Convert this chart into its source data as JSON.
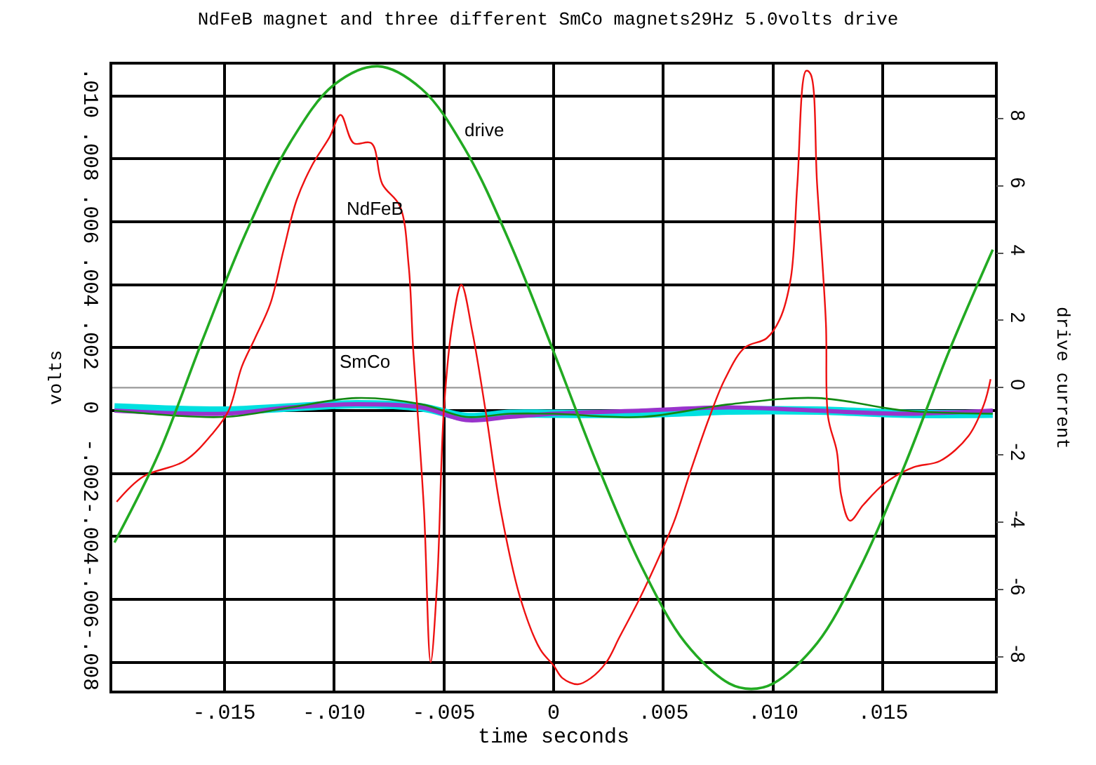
{
  "chart_data": {
    "type": "line",
    "title": "NdFeB magnet and three different SmCo magnets29Hz 5.0volts drive",
    "xlabel": "time seconds",
    "ylabel": "volts",
    "y2label": "drive current",
    "xlim": [
      -0.0201,
      0.0201
    ],
    "xticks": [
      {
        "value": -0.015,
        "label": "-.015"
      },
      {
        "value": -0.01,
        "label": "-.010"
      },
      {
        "value": -0.005,
        "label": "-.005"
      },
      {
        "value": 0,
        "label": "0"
      },
      {
        "value": 0.005,
        "label": ".005"
      },
      {
        "value": 0.01,
        "label": ".010"
      },
      {
        "value": 0.015,
        "label": ".015"
      }
    ],
    "ylim": [
      -0.0089,
      0.011
    ],
    "yticks": [
      {
        "value": -0.008,
        "label": "-.008"
      },
      {
        "value": -0.006,
        "label": "-.006"
      },
      {
        "value": -0.004,
        "label": "-.004"
      },
      {
        "value": -0.002,
        "label": "-.002"
      },
      {
        "value": 0,
        "label": "0"
      },
      {
        "value": 0.002,
        "label": ".002"
      },
      {
        "value": 0.004,
        "label": ".004"
      },
      {
        "value": 0.006,
        "label": ".006"
      },
      {
        "value": 0.008,
        "label": ".008"
      },
      {
        "value": 0.01,
        "label": ".010"
      }
    ],
    "y2lim": [
      -9.0,
      9.6
    ],
    "y2ticks": [
      -8,
      -6,
      -4,
      -2,
      0,
      2,
      4,
      6,
      8
    ],
    "grid": true,
    "marker": "none",
    "line_style": "solid",
    "ref_lines": [
      {
        "axis": "y2",
        "value": 0,
        "color": "#999999"
      }
    ],
    "annotations": [
      "drive",
      "NdFeB",
      "SmCo"
    ],
    "series": [
      {
        "color": "#00e0e0",
        "x": [
          -0.02,
          -0.015,
          -0.012,
          -0.009,
          -0.006,
          -0.004,
          -0.002,
          0,
          0.004,
          0.008,
          0.012,
          0.016,
          0.02
        ],
        "values": [
          0.0001,
          0,
          0.0001,
          0.0002,
          0.0001,
          -0.0002,
          -0.0001,
          -0.0001,
          -0.0001,
          0,
          0,
          -0.0001,
          -0.0001
        ]
      },
      {
        "color": "#9933cc",
        "x": [
          -0.02,
          -0.015,
          -0.012,
          -0.009,
          -0.006,
          -0.004,
          -0.002,
          0,
          0.004,
          0.008,
          0.012,
          0.016,
          0.02
        ],
        "values": [
          0,
          -0.0001,
          0.0001,
          0.0002,
          0.0001,
          -0.0003,
          -0.0002,
          -0.0001,
          0,
          0.0001,
          0,
          -0.0001,
          0
        ]
      },
      {
        "color": "#118811",
        "x": [
          -0.02,
          -0.015,
          -0.012,
          -0.009,
          -0.006,
          -0.004,
          -0.002,
          0,
          0.004,
          0.008,
          0.012,
          0.016,
          0.02
        ],
        "values": [
          0,
          -0.0002,
          0.0001,
          0.0004,
          0.0002,
          -0.0002,
          -0.0001,
          -0.0001,
          -0.0002,
          0.0002,
          0.0004,
          0,
          -0.0001
        ]
      },
      {
        "color": "#ee1111",
        "x": [
          -0.0199,
          -0.0187,
          -0.0168,
          -0.0155,
          -0.0148,
          -0.0142,
          -0.0136,
          -0.0129,
          -0.0123,
          -0.0117,
          -0.011,
          -0.0102,
          -0.0097,
          -0.0091,
          -0.0083,
          -0.0078,
          -0.007,
          -0.0066,
          -0.0064,
          -0.0062,
          -0.0059,
          -0.0056,
          -0.0053,
          -0.005,
          -0.0046,
          -0.0042,
          -0.0037,
          -0.0031,
          -0.0024,
          -0.0015,
          -0.0006,
          0,
          0.0004,
          0.0011,
          0.0017,
          0.0024,
          0.003,
          0.0039,
          0.0049,
          0.0055,
          0.0062,
          0.0071,
          0.0078,
          0.0087,
          0.0097,
          0.0103,
          0.0108,
          0.0111,
          0.0115,
          0.0117,
          0.012,
          0.0124,
          0.0125,
          0.0129,
          0.0131,
          0.0135,
          0.0141,
          0.0151,
          0.0164,
          0.0176,
          0.0189,
          0.0196,
          0.0199
        ],
        "values": [
          -0.0029,
          -0.0021,
          -0.0016,
          -0.0007,
          0,
          0.0014,
          0.0023,
          0.0034,
          0.0051,
          0.0067,
          0.0078,
          0.0087,
          0.0094,
          0.0085,
          0.0085,
          0.0072,
          0.0065,
          0.0046,
          0.002,
          0,
          -0.0032,
          -0.008,
          -0.0054,
          0,
          0.0028,
          0.004,
          0.0025,
          0,
          -0.0032,
          -0.006,
          -0.0076,
          -0.0081,
          -0.0085,
          -0.0087,
          -0.0085,
          -0.008,
          -0.0072,
          -0.006,
          -0.0045,
          -0.0035,
          -0.002,
          -0.0002,
          0.001,
          0.002,
          0.0023,
          0.0029,
          0.0042,
          0.0072,
          0.0108,
          0.0107,
          0.0072,
          0.0028,
          -0.0002,
          -0.0013,
          -0.0027,
          -0.0035,
          -0.003,
          -0.0023,
          -0.0018,
          -0.0016,
          -0.0008,
          0.0002,
          0.001
        ]
      },
      {
        "color": "#22aa22",
        "axis": "y2",
        "x": [
          -0.02,
          -0.018,
          -0.016,
          -0.014,
          -0.012,
          -0.01,
          -0.008,
          -0.006,
          -0.004,
          -0.002,
          0,
          0.002,
          0.004,
          0.006,
          0.008,
          0.009,
          0.01,
          0.012,
          0.014,
          0.016,
          0.018,
          0.02
        ],
        "values": [
          -4.6,
          -1.98,
          1.4,
          4.62,
          7.28,
          9.0,
          9.55,
          8.87,
          7.05,
          4.32,
          1.07,
          -2.3,
          -5.31,
          -7.58,
          -8.79,
          -8.95,
          -8.79,
          -7.59,
          -5.29,
          -2.29,
          1.07,
          4.1
        ]
      }
    ]
  }
}
